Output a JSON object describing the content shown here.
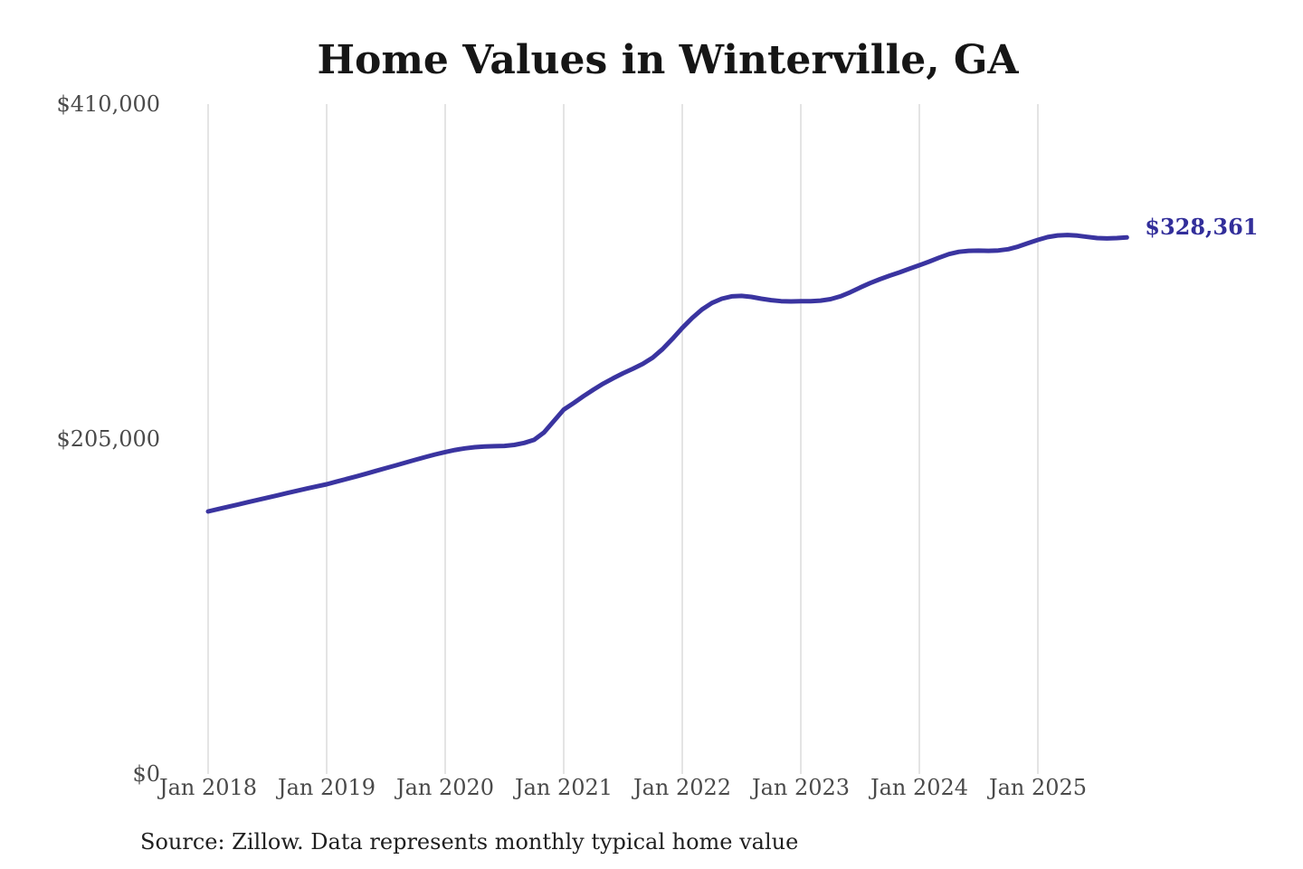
{
  "title": "Home Values in Winterville, GA",
  "source_note": "Source: Zillow. Data represents monthly typical home value",
  "colors": {
    "line": "#3a34a0",
    "end_label": "#322e9a",
    "grid": "#c9c9c9",
    "axis_text": "#4a4a4a",
    "title_text": "#161616",
    "source_text": "#1f1f1f",
    "background": "#ffffff"
  },
  "chart_data": {
    "type": "line",
    "title": "Home Values in Winterville, GA",
    "xlabel": "",
    "ylabel": "",
    "grid": "vertical-only",
    "legend": "none",
    "ylim": [
      0,
      410000
    ],
    "y_ticks": [
      0,
      205000,
      410000
    ],
    "y_tick_labels": [
      "$0",
      "$205,000",
      "$410,000"
    ],
    "x_tick_labels": [
      "Jan 2018",
      "Jan 2019",
      "Jan 2020",
      "Jan 2021",
      "Jan 2022",
      "Jan 2023",
      "Jan 2024",
      "Jan 2025"
    ],
    "x_start_month": "2018-01",
    "x_end_month": "2025-10",
    "months_per_tick": 12,
    "final_value": 328361,
    "final_value_label": "$328,361",
    "series": [
      {
        "name": "Monthly typical home value",
        "values": [
          160700,
          162100,
          163500,
          164900,
          166300,
          167700,
          169100,
          170500,
          171900,
          173300,
          174700,
          176000,
          177300,
          178900,
          180500,
          182100,
          183800,
          185500,
          187200,
          188900,
          190600,
          192300,
          194000,
          195600,
          197000,
          198300,
          199300,
          200000,
          200400,
          200600,
          200800,
          201400,
          202600,
          204500,
          209000,
          216000,
          223000,
          227000,
          231200,
          235200,
          238900,
          242200,
          245200,
          248000,
          251000,
          254800,
          260000,
          266300,
          273000,
          279000,
          284300,
          288300,
          290900,
          292300,
          292600,
          292000,
          290900,
          290000,
          289400,
          289200,
          289400,
          289300,
          289700,
          290600,
          292300,
          294800,
          297700,
          300400,
          302800,
          305000,
          307000,
          309200,
          311400,
          313600,
          316000,
          318200,
          319600,
          320200,
          320300,
          320200,
          320400,
          321200,
          322800,
          324900,
          326900,
          328600,
          329600,
          329900,
          329500,
          328700,
          328000,
          327800,
          328000,
          328361
        ]
      }
    ]
  }
}
